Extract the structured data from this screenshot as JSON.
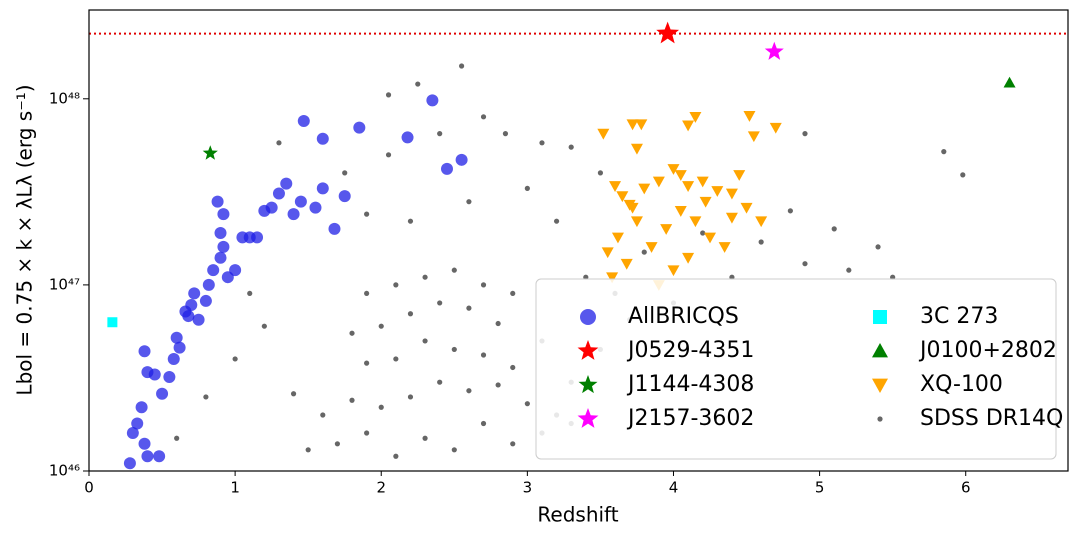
{
  "chart_data": {
    "type": "scatter",
    "xlabel": "Redshift",
    "ylabel": "Lbol = 0.75 × k × λLλ (erg s⁻¹)",
    "xlim": [
      0,
      6.7
    ],
    "ylim": [
      1e+46,
      3e+48
    ],
    "xticks": [
      0,
      1,
      2,
      3,
      4,
      5,
      6
    ],
    "yticks": [
      {
        "value": 1e+46,
        "label": "10⁴⁶"
      },
      {
        "value": 1e+47,
        "label": "10⁴⁷"
      },
      {
        "value": 1e+48,
        "label": "10⁴⁸"
      }
    ],
    "log_y": true,
    "legend": "lower right",
    "hline": {
      "value": 2.24e+48,
      "color": "#e00000"
    },
    "series": [
      {
        "name": "AllBRICQS",
        "color": "#1f1fe6",
        "marker": "circle",
        "size": 6,
        "x": [
          0.28,
          0.3,
          0.33,
          0.38,
          0.4,
          0.36,
          0.4,
          0.38,
          0.45,
          0.5,
          0.55,
          0.58,
          0.6,
          0.62,
          0.68,
          0.7,
          0.72,
          0.75,
          0.8,
          0.82,
          0.85,
          0.9,
          0.95,
          0.92,
          1.0,
          1.05,
          0.9,
          0.88,
          0.92,
          1.15,
          1.2,
          1.25,
          1.3,
          1.35,
          1.4,
          1.45,
          1.55,
          1.6,
          1.68,
          1.75,
          1.47,
          1.6,
          1.85,
          2.18,
          2.35,
          2.45,
          2.55,
          0.48,
          0.66,
          1.1
        ],
        "values": [
          1.1e+46,
          1.6e+46,
          1.8e+46,
          1.4e+46,
          1.2e+46,
          2.2e+46,
          3.4e+46,
          4.4e+46,
          3.3e+46,
          2.6e+46,
          3.2e+46,
          4e+46,
          5.2e+46,
          4.6e+46,
          6.8e+46,
          7.8e+46,
          9e+46,
          6.5e+46,
          8.2e+46,
          1e+47,
          1.2e+47,
          1.4e+47,
          1.1e+47,
          1.6e+47,
          1.2e+47,
          1.8e+47,
          1.9e+47,
          2.8e+47,
          2.4e+47,
          1.8e+47,
          2.5e+47,
          2.6e+47,
          3.1e+47,
          3.5e+47,
          2.4e+47,
          2.8e+47,
          2.6e+47,
          3.3e+47,
          2e+47,
          3e+47,
          7.6e+47,
          6.1e+47,
          7e+47,
          6.2e+47,
          9.8e+47,
          4.2e+47,
          4.7e+47,
          1.2e+46,
          7.2e+46,
          1.8e+47
        ]
      },
      {
        "name": "J0529-4351",
        "color": "#ff0000",
        "marker": "star",
        "size": 12,
        "x": [
          3.96
        ],
        "values": [
          2.24e+48
        ]
      },
      {
        "name": "J1144-4308",
        "color": "#008000",
        "marker": "star",
        "size": 8,
        "x": [
          0.83
        ],
        "values": [
          5.1e+47
        ]
      },
      {
        "name": "J2157-3602",
        "color": "#ff00ff",
        "marker": "star",
        "size": 10,
        "x": [
          4.69
        ],
        "values": [
          1.79e+48
        ]
      },
      {
        "name": "3C 273",
        "color": "#00ffff",
        "marker": "square",
        "size": 5,
        "x": [
          0.16
        ],
        "values": [
          6.3e+46
        ]
      },
      {
        "name": "J0100+2802",
        "color": "#008000",
        "marker": "triangle-up",
        "size": 6,
        "x": [
          6.3
        ],
        "values": [
          1.22e+48
        ]
      },
      {
        "name": "XQ-100",
        "color": "#ffa500",
        "marker": "triangle-down",
        "size": 6,
        "x": [
          3.52,
          3.72,
          3.78,
          3.75,
          4.1,
          4.15,
          4.52,
          4.55,
          4.7,
          3.6,
          3.65,
          3.7,
          3.8,
          3.9,
          4.0,
          4.05,
          4.1,
          4.2,
          4.3,
          4.4,
          4.45,
          4.5,
          3.55,
          3.62,
          3.68,
          3.75,
          3.85,
          3.95,
          4.0,
          4.05,
          4.15,
          4.25,
          4.35,
          3.58,
          3.9,
          4.1,
          4.6,
          3.72,
          4.22,
          4.4
        ],
        "values": [
          6.5e+47,
          7.3e+47,
          7.3e+47,
          5.4e+47,
          7.2e+47,
          8e+47,
          8.1e+47,
          6.3e+47,
          7e+47,
          3.4e+47,
          3e+47,
          2.7e+47,
          3.3e+47,
          3.6e+47,
          4.2e+47,
          3.9e+47,
          3.4e+47,
          3.6e+47,
          3.2e+47,
          3.1e+47,
          3.9e+47,
          2.6e+47,
          1.5e+47,
          1.8e+47,
          1.3e+47,
          2.2e+47,
          1.6e+47,
          2e+47,
          1.2e+47,
          2.5e+47,
          2.2e+47,
          1.8e+47,
          1.6e+47,
          1.1e+47,
          1e+47,
          1.4e+47,
          2.2e+47,
          2.6e+47,
          2.8e+47,
          2.3e+47
        ]
      },
      {
        "name": "SDSS DR14Q",
        "color": "#000000",
        "marker": "dot",
        "size": 2.6,
        "x": [
          2.1,
          2.3,
          2.5,
          2.7,
          1.9,
          1.7,
          2.9,
          3.1,
          1.5,
          2.2,
          2.4,
          2.6,
          2.0,
          1.8,
          2.8,
          3.0,
          3.2,
          1.6,
          2.1,
          2.3,
          2.5,
          2.7,
          1.9,
          2.9,
          3.3,
          1.4,
          2.2,
          2.4,
          2.6,
          2.0,
          1.8,
          2.8,
          3.1,
          2.3,
          2.5,
          2.1,
          2.7,
          1.9,
          2.9,
          3.4,
          3.6,
          3.8,
          4.2,
          4.6,
          4.9,
          5.2,
          5.4,
          4.8,
          2.2,
          2.6,
          3.0,
          3.2,
          1.9,
          1.75,
          2.05,
          2.4,
          2.7,
          2.55,
          2.25,
          2.05,
          2.85,
          3.1,
          3.5,
          3.3,
          4.9,
          5.85,
          5.98,
          5.5,
          5.1,
          1.3,
          1.1,
          1.2,
          1.0,
          0.8,
          0.6,
          3.3,
          3.5,
          3.7,
          4.0,
          4.4
        ],
        "values": [
          1.2e+46,
          1.5e+46,
          1.3e+46,
          1.8e+46,
          1.6e+46,
          1.4e+46,
          1.4e+46,
          1.6e+46,
          1.3e+46,
          2.5e+46,
          3e+46,
          2.7e+46,
          2.2e+46,
          2.4e+46,
          2.9e+46,
          2.3e+46,
          2e+46,
          2e+46,
          4e+46,
          5e+46,
          4.5e+46,
          4.2e+46,
          3.8e+46,
          3.6e+46,
          3e+46,
          2.6e+46,
          7e+46,
          8e+46,
          7.5e+46,
          6e+46,
          5.5e+46,
          6.2e+46,
          5e+46,
          1.1e+47,
          1.2e+47,
          1e+47,
          1e+47,
          9e+46,
          9e+46,
          1.1e+47,
          9e+46,
          1.5e+47,
          1.9e+47,
          1.7e+47,
          1.3e+47,
          1.2e+47,
          1.6e+47,
          2.5e+47,
          2.2e+47,
          2.8e+47,
          3.3e+47,
          2.2e+47,
          2.4e+47,
          4e+47,
          5e+47,
          6.5e+47,
          8e+47,
          1.5e+48,
          1.2e+48,
          1.05e+48,
          6.5e+47,
          5.8e+47,
          4e+47,
          5.5e+47,
          6.5e+47,
          5.2e+47,
          3.9e+47,
          1.1e+47,
          2e+47,
          5.8e+47,
          9e+46,
          6e+46,
          4e+46,
          2.5e+46,
          1.5e+46,
          1.8e+46,
          4.5e+46,
          6.5e+46,
          8e+46,
          1.1e+47
        ]
      }
    ]
  }
}
